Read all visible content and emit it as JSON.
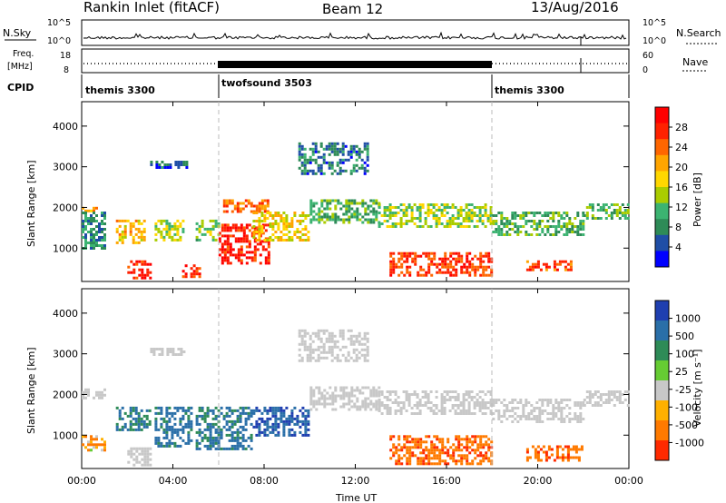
{
  "header": {
    "station": "Rankin Inlet (fitACF)",
    "beam": "Beam 12",
    "date": "13/Aug/2016"
  },
  "time_axis": {
    "xlabel": "Time UT",
    "ticks": [
      "00:00",
      "04:00",
      "08:00",
      "12:00",
      "16:00",
      "20:00",
      "00:00"
    ]
  },
  "noise_panel": {
    "left_label": "N.Sky",
    "right_label": "N.Search",
    "left_ticks": [
      "10^5",
      "10^0"
    ],
    "right_ticks": [
      "10^5",
      "10^0"
    ]
  },
  "freq_panel": {
    "left_label_line1": "Freq.",
    "left_label_line2": "[MHz]",
    "right_label": "Nave",
    "left_ticks": [
      "18",
      "8"
    ],
    "right_ticks": [
      "60",
      "0"
    ]
  },
  "cpid": {
    "label": "CPID",
    "segments": [
      {
        "name": "themis 3300",
        "start_hour": 0,
        "end_hour": 6
      },
      {
        "name": "twofsound 3503",
        "start_hour": 6,
        "end_hour": 18
      },
      {
        "name": "themis 3300",
        "start_hour": 18,
        "end_hour": 24
      }
    ]
  },
  "power_panel": {
    "ylabel": "Slant Range [km]",
    "yticks": [
      "1000",
      "2000",
      "3000",
      "4000"
    ],
    "colorbar_label": "Power [dB]",
    "colorbar_ticks": [
      "4",
      "8",
      "12",
      "16",
      "20",
      "24",
      "28"
    ],
    "colors": [
      "#0000ff",
      "#1f4ea6",
      "#2e8b57",
      "#3cb371",
      "#aacc00",
      "#ffd700",
      "#ffa500",
      "#ff6600",
      "#ff2200",
      "#ff0000"
    ]
  },
  "velocity_panel": {
    "ylabel": "Slant Range [km]",
    "yticks": [
      "1000",
      "2000",
      "3000",
      "4000"
    ],
    "colorbar_label": "Velocity [m s⁻¹]",
    "colorbar_ticks": [
      "1000",
      "500",
      "100",
      "25",
      "-25",
      "-100",
      "-500",
      "-1000"
    ],
    "colors": [
      "#1f3fb0",
      "#2a6fa8",
      "#2e8b57",
      "#66cc33",
      "#c8c8c8",
      "#ffb000",
      "#ff7a00",
      "#ff2a00"
    ]
  },
  "chart_data": [
    {
      "type": "line",
      "title": "N.Sky / N.Search",
      "x_range_hours": [
        0,
        24
      ],
      "yscale": "log",
      "ylim": [
        "10^0",
        "10^5"
      ]
    },
    {
      "type": "line",
      "title": "Freq. / Nave",
      "x_range_hours": [
        0,
        24
      ],
      "freq_ylim_mhz": [
        8,
        18
      ],
      "nave_ylim": [
        0,
        60
      ]
    },
    {
      "type": "heatmap",
      "title": "Power",
      "x_range_hours": [
        0,
        24
      ],
      "ylim_km": [
        180,
        4600
      ],
      "clim_db": [
        0,
        30
      ],
      "colorbar_label": "Power [dB]",
      "regions": [
        {
          "t0": 0.0,
          "t1": 0.7,
          "r0": 1900,
          "r1": 2150,
          "value": 20
        },
        {
          "t0": 0.0,
          "t1": 1.0,
          "r0": 1000,
          "r1": 1900,
          "value": 8
        },
        {
          "t0": 1.5,
          "t1": 2.8,
          "r0": 1100,
          "r1": 1700,
          "value": 18
        },
        {
          "t0": 2.0,
          "t1": 3.0,
          "r0": 250,
          "r1": 700,
          "value": 27
        },
        {
          "t0": 3.2,
          "t1": 4.5,
          "r0": 1200,
          "r1": 1700,
          "value": 14
        },
        {
          "t0": 3.0,
          "t1": 4.6,
          "r0": 2950,
          "r1": 3150,
          "value": 6
        },
        {
          "t0": 4.4,
          "t1": 5.2,
          "r0": 300,
          "r1": 600,
          "value": 26
        },
        {
          "t0": 5.0,
          "t1": 6.0,
          "r0": 1200,
          "r1": 1700,
          "value": 12
        },
        {
          "t0": 6.0,
          "t1": 8.2,
          "r0": 600,
          "r1": 1600,
          "value": 27
        },
        {
          "t0": 6.2,
          "t1": 8.2,
          "r0": 1900,
          "r1": 2200,
          "value": 22
        },
        {
          "t0": 7.5,
          "t1": 10.0,
          "r0": 1200,
          "r1": 1900,
          "value": 16
        },
        {
          "t0": 9.5,
          "t1": 12.5,
          "r0": 2800,
          "r1": 3600,
          "value": 6
        },
        {
          "t0": 10.0,
          "t1": 13.0,
          "r0": 1600,
          "r1": 2200,
          "value": 10
        },
        {
          "t0": 13.0,
          "t1": 18.0,
          "r0": 1500,
          "r1": 2100,
          "value": 13
        },
        {
          "t0": 13.5,
          "t1": 18.0,
          "r0": 300,
          "r1": 900,
          "value": 25
        },
        {
          "t0": 18.0,
          "t1": 22.0,
          "r0": 1300,
          "r1": 1900,
          "value": 10
        },
        {
          "t0": 19.5,
          "t1": 21.5,
          "r0": 450,
          "r1": 700,
          "value": 24
        },
        {
          "t0": 22.0,
          "t1": 24.0,
          "r0": 1700,
          "r1": 2100,
          "value": 11
        }
      ]
    },
    {
      "type": "heatmap",
      "title": "Velocity",
      "x_range_hours": [
        0,
        24
      ],
      "ylim_km": [
        180,
        4600
      ],
      "clim_ms": [
        -1000,
        1000
      ],
      "colorbar_label": "Velocity [m s⁻¹]",
      "regions": [
        {
          "t0": 0.0,
          "t1": 1.0,
          "r0": 1900,
          "r1": 2150,
          "value": 0
        },
        {
          "t0": 0.0,
          "t1": 1.0,
          "r0": 600,
          "r1": 1000,
          "value": -150
        },
        {
          "t0": 1.5,
          "t1": 3.0,
          "r0": 1100,
          "r1": 1700,
          "value": 300
        },
        {
          "t0": 2.0,
          "t1": 3.0,
          "r0": 250,
          "r1": 700,
          "value": 0
        },
        {
          "t0": 3.0,
          "t1": 4.5,
          "r0": 2950,
          "r1": 3150,
          "value": 0
        },
        {
          "t0": 3.2,
          "t1": 4.8,
          "r0": 700,
          "r1": 1700,
          "value": 400
        },
        {
          "t0": 5.0,
          "t1": 7.5,
          "r0": 650,
          "r1": 1700,
          "value": 400
        },
        {
          "t0": 7.5,
          "t1": 10.0,
          "r0": 1000,
          "r1": 1700,
          "value": 700
        },
        {
          "t0": 10.0,
          "t1": 13.0,
          "r0": 1600,
          "r1": 2200,
          "value": 0
        },
        {
          "t0": 9.5,
          "t1": 12.5,
          "r0": 2800,
          "r1": 3600,
          "value": 0
        },
        {
          "t0": 13.0,
          "t1": 18.0,
          "r0": 1500,
          "r1": 2100,
          "value": 0
        },
        {
          "t0": 13.5,
          "t1": 18.0,
          "r0": 300,
          "r1": 1000,
          "value": -400
        },
        {
          "t0": 18.0,
          "t1": 22.0,
          "r0": 1300,
          "r1": 1900,
          "value": 0
        },
        {
          "t0": 19.5,
          "t1": 22.0,
          "r0": 400,
          "r1": 750,
          "value": -400
        },
        {
          "t0": 22.0,
          "t1": 24.0,
          "r0": 1700,
          "r1": 2100,
          "value": 0
        }
      ]
    }
  ]
}
